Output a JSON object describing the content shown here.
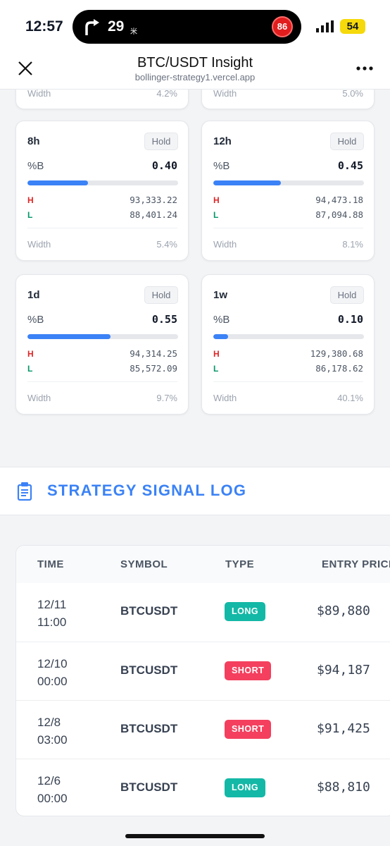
{
  "status": {
    "time": "12:57",
    "nav_distance": "29",
    "nav_unit": "米",
    "badge": "86",
    "battery": "54"
  },
  "header": {
    "title": "BTC/USDT Insight",
    "url": "bollinger-strategy1.vercel.app"
  },
  "partial_cards": [
    {
      "width_label": "Width",
      "width": "4.2%"
    },
    {
      "width_label": "Width",
      "width": "5.0%"
    }
  ],
  "cards": [
    {
      "interval": "8h",
      "action": "Hold",
      "pb_label": "%B",
      "pb": {
        "value": 0.4,
        "label": "0.40"
      },
      "h_label": "H",
      "high": "93,333.22",
      "l_label": "L",
      "low": "88,401.24",
      "width_label": "Width",
      "width": "5.4%"
    },
    {
      "interval": "12h",
      "action": "Hold",
      "pb_label": "%B",
      "pb": {
        "value": 0.45,
        "label": "0.45"
      },
      "h_label": "H",
      "high": "94,473.18",
      "l_label": "L",
      "low": "87,094.88",
      "width_label": "Width",
      "width": "8.1%"
    },
    {
      "interval": "1d",
      "action": "Hold",
      "pb_label": "%B",
      "pb": {
        "value": 0.55,
        "label": "0.55"
      },
      "h_label": "H",
      "high": "94,314.25",
      "l_label": "L",
      "low": "85,572.09",
      "width_label": "Width",
      "width": "9.7%"
    },
    {
      "interval": "1w",
      "action": "Hold",
      "pb_label": "%B",
      "pb": {
        "value": 0.1,
        "label": "0.10"
      },
      "h_label": "H",
      "high": "129,380.68",
      "l_label": "L",
      "low": "86,178.62",
      "width_label": "Width",
      "width": "40.1%"
    }
  ],
  "signal_log": {
    "title": "STRATEGY SIGNAL LOG",
    "columns": [
      "TIME",
      "SYMBOL",
      "TYPE",
      "ENTRY PRICE"
    ],
    "rows": [
      {
        "date": "12/11",
        "time": "11:00",
        "symbol": "BTCUSDT",
        "type": "LONG",
        "entry": "$89,880"
      },
      {
        "date": "12/10",
        "time": "00:00",
        "symbol": "BTCUSDT",
        "type": "SHORT",
        "entry": "$94,187"
      },
      {
        "date": "12/8",
        "time": "03:00",
        "symbol": "BTCUSDT",
        "type": "SHORT",
        "entry": "$91,425"
      },
      {
        "date": "12/6",
        "time": "00:00",
        "symbol": "BTCUSDT",
        "type": "LONG",
        "entry": "$88,810"
      }
    ]
  }
}
